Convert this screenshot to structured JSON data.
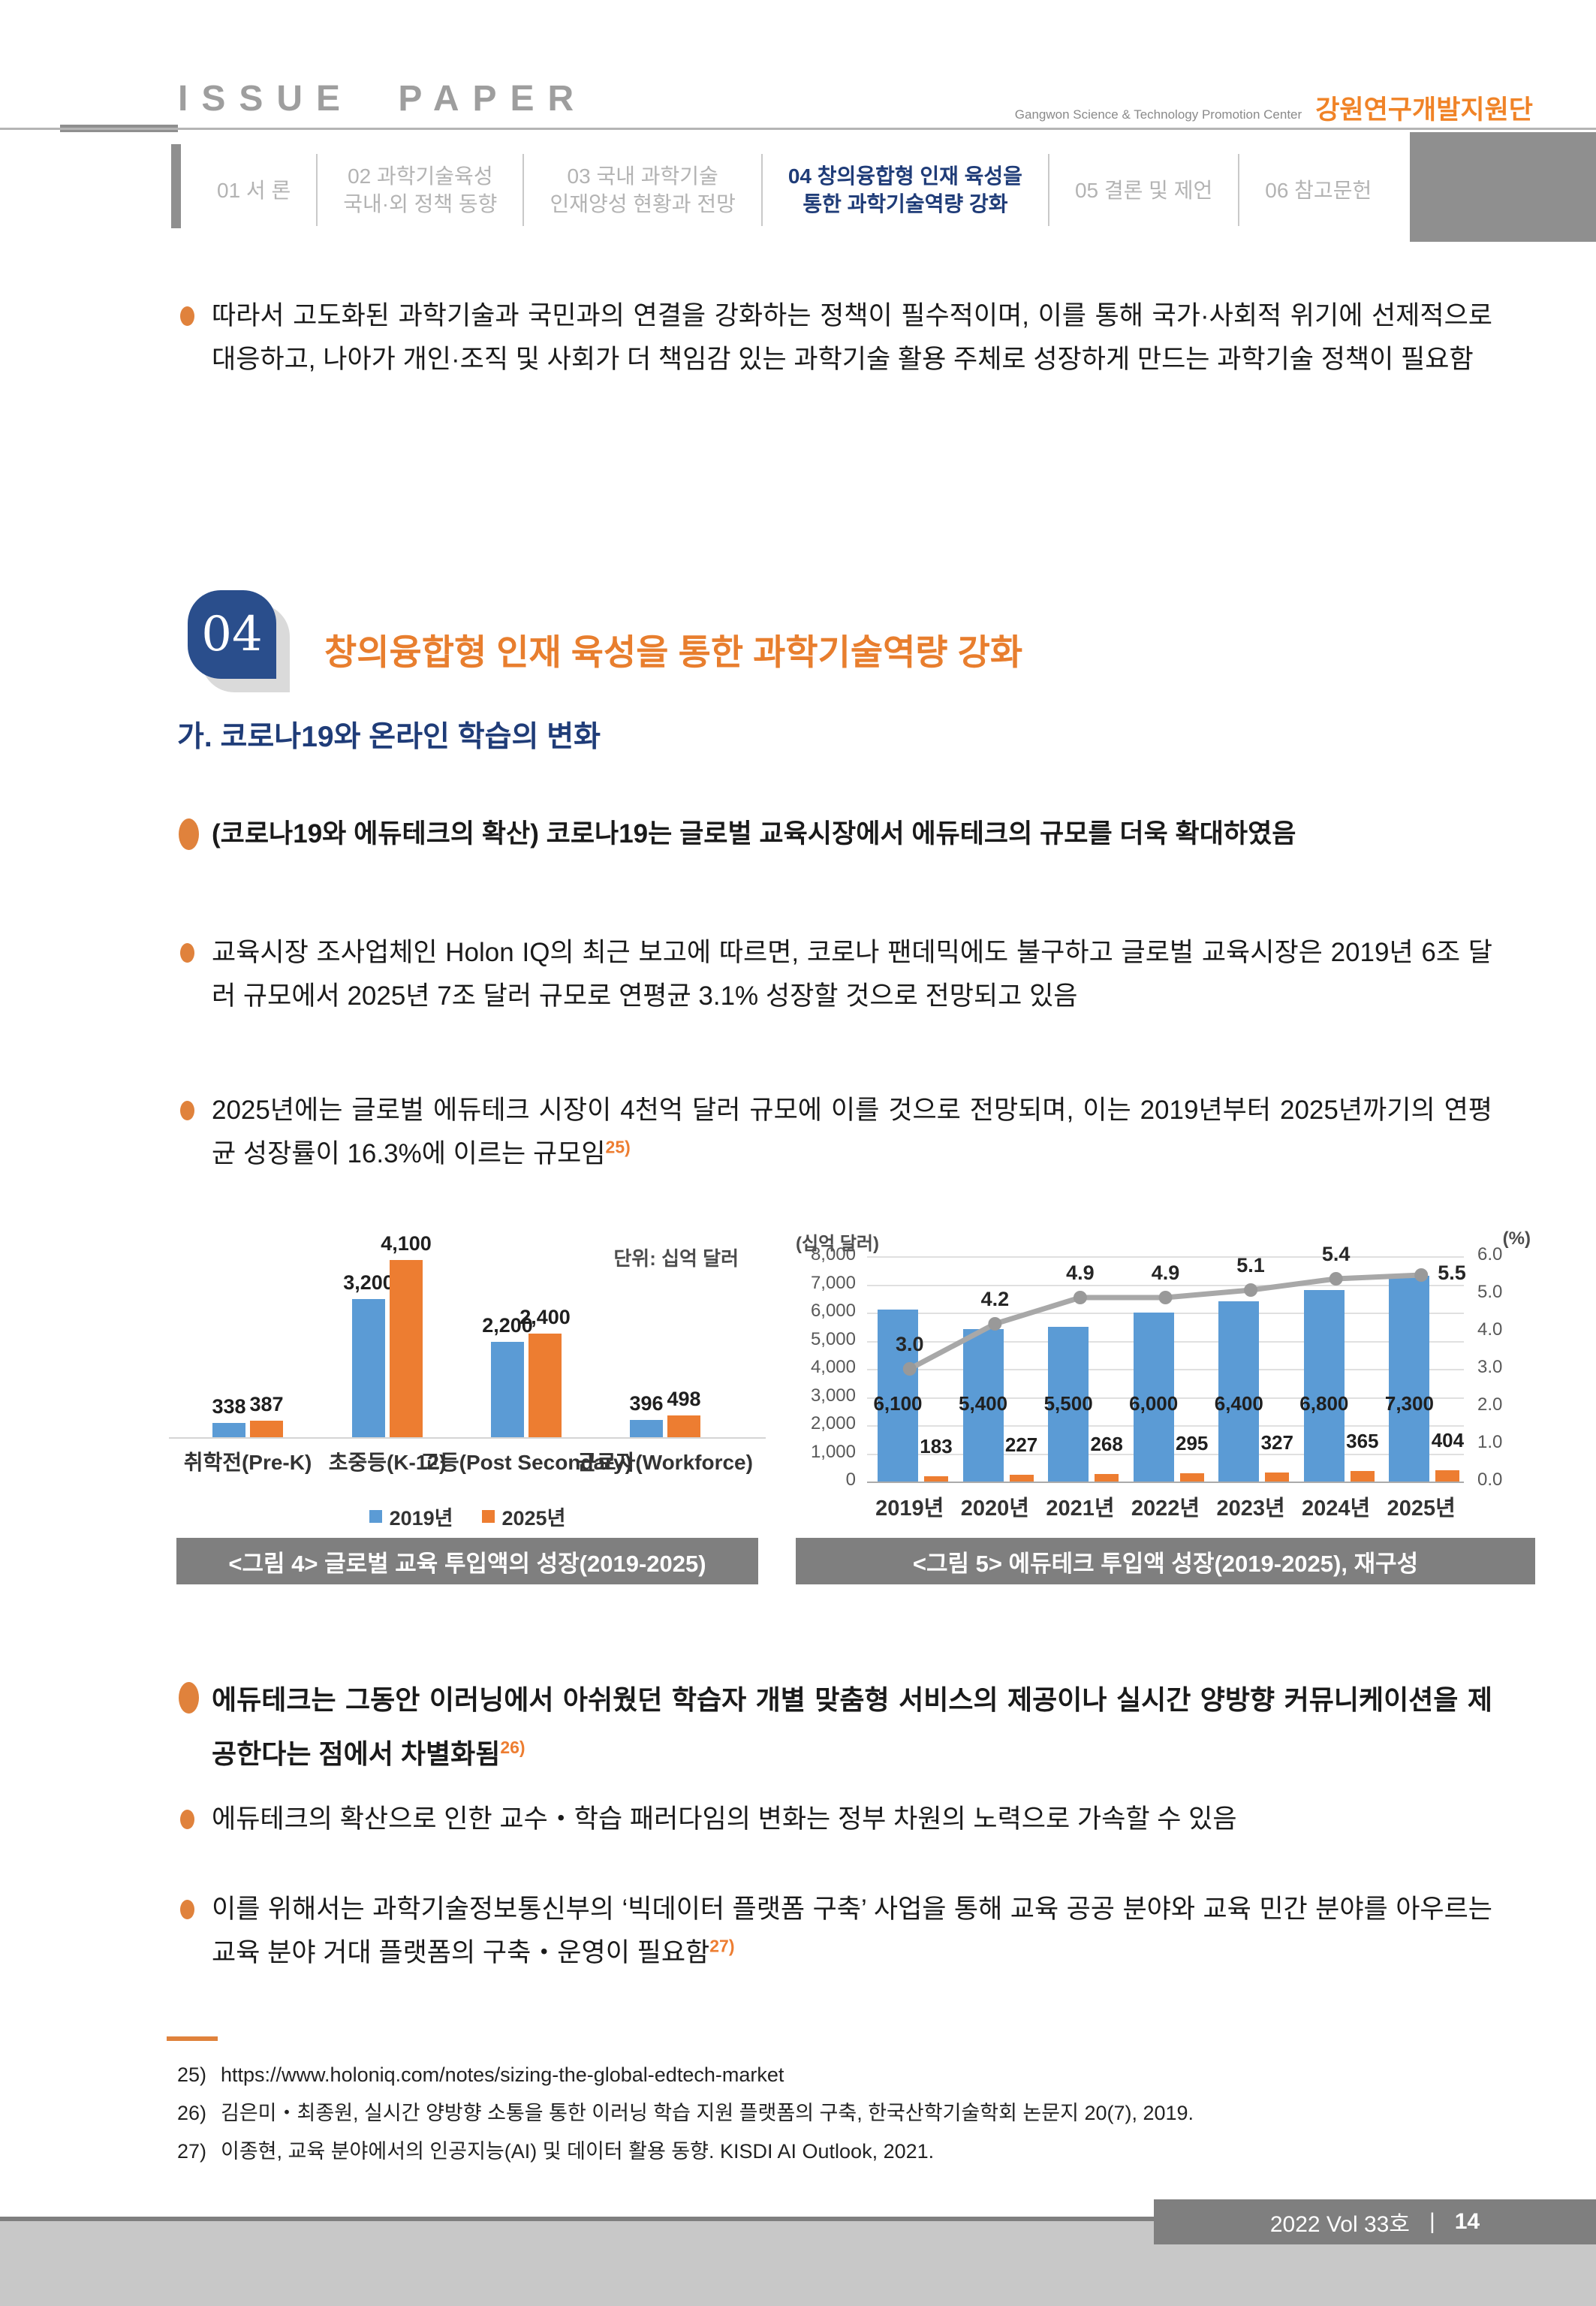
{
  "header": {
    "title": "ISSUE PAPER",
    "org_en": "Gangwon Science & Technology Promotion Center",
    "org_kr": "강원연구개발지원단"
  },
  "nav": [
    {
      "line1": "01 서 론"
    },
    {
      "line1": "02 과학기술육성",
      "line2": "국내·외 정책 동향"
    },
    {
      "line1": "03 국내 과학기술",
      "line2": "인재양성 현황과 전망"
    },
    {
      "line1": "04 창의융합형 인재 육성을",
      "line2": "통한 과학기술역량 강화",
      "active": true
    },
    {
      "line1": "05 결론 및 제언"
    },
    {
      "line1": "06 참고문헌"
    }
  ],
  "content": {
    "intro": "따라서 고도화된 과학기술과 국민과의 연결을 강화하는 정책이 필수적이며, 이를 통해 국가·사회적 위기에 선제적으로 대응하고, 나아가 개인·조직 및 사회가 더 책임감 있는 과학기술 활용 주체로 성장하게 만드는 과학기술 정책이 필요함",
    "section_no": "04",
    "section_title": "창의융합형 인재 육성을 통한 과학기술역량 강화",
    "subsection": "가. 코로나19와 온라인 학습의 변화",
    "b1_head": "(코로나19와 에듀테크의 확산)",
    "b1_rest": " 코로나19는 글로벌 교육시장에서 에듀테크의 규모를 더욱 확대하였음",
    "b2": "교육시장 조사업체인 Holon IQ의 최근 보고에 따르면, 코로나 팬데믹에도 불구하고 글로벌 교육시장은 2019년 6조 달러 규모에서 2025년 7조 달러 규모로 연평균 3.1% 성장할 것으로 전망되고 있음",
    "b3": "2025년에는 글로벌 에듀테크 시장이 4천억 달러 규모에 이를 것으로 전망되며, 이는 2019년부터 2025년까기의 연평균 성장률이 16.3%에 이르는 규모임",
    "b3_sup": "25)",
    "b4": "에듀테크는 그동안 이러닝에서 아쉬웠던 학습자 개별 맞춤형 서비스의 제공이나 실시간 양방향 커뮤니케이션을 제공한다는 점에서 차별화됨",
    "b4_sup": "26)",
    "b5": "에듀테크의 확산으로 인한 교수・학습 패러다임의 변화는 정부 차원의 노력으로 가속할 수 있음",
    "b6": "이를 위해서는 과학기술정보통신부의 ‘빅데이터 플랫폼 구축’ 사업을 통해 교육 공공 분야와 교육 민간 분야를 아우르는 교육 분야 거대 플랫폼의 구축・운영이 필요함",
    "b6_sup": "27)"
  },
  "figures": {
    "fig4_caption": "<그림 4> 글로벌 교육 투입액의 성장(2019-2025)",
    "fig5_caption": "<그림 5> 에듀테크 투입액 성장(2019-2025), 재구성"
  },
  "chart_data": [
    {
      "id": "fig4",
      "type": "bar",
      "unit_label": "단위: 십억 달러",
      "categories": [
        "취학전(Pre-K)",
        "초중등(K-12)",
        "고등(Post Secondary)",
        "근로자(Workforce)"
      ],
      "series": [
        {
          "name": "2019년",
          "color": "#5B9BD5",
          "values": [
            338,
            3200,
            2200,
            396
          ],
          "labels": [
            "338",
            "3,200",
            "2,200",
            "396"
          ]
        },
        {
          "name": "2025년",
          "color": "#ED7D31",
          "values": [
            387,
            4100,
            2400,
            498
          ],
          "labels": [
            "387",
            "4,100",
            "2,400",
            "498"
          ]
        }
      ],
      "ylim": [
        0,
        4300
      ],
      "legend_position": "bottom"
    },
    {
      "id": "fig5",
      "type": "combo",
      "left_axis": {
        "label": "(십억 달러)",
        "max": 8000,
        "ticks": [
          "8,000",
          "7,000",
          "6,000",
          "5,000",
          "4,000",
          "3,000",
          "2,000",
          "1,000",
          "0"
        ]
      },
      "right_axis": {
        "label": "(%)",
        "max": 6.0,
        "ticks": [
          "6.0",
          "5.0",
          "4.0",
          "3.0",
          "2.0",
          "1.0",
          "0.0"
        ]
      },
      "categories": [
        "2019년",
        "2020년",
        "2021년",
        "2022년",
        "2023년",
        "2024년",
        "2025년"
      ],
      "bar_series": [
        {
          "color": "#5B9BD5",
          "values": [
            6100,
            5400,
            5500,
            6000,
            6400,
            6800,
            7300
          ],
          "labels": [
            "6,100",
            "5,400",
            "5,500",
            "6,000",
            "6,400",
            "6,800",
            "7,300"
          ],
          "label_position": "inside"
        },
        {
          "color": "#ED7D31",
          "values": [
            183,
            227,
            268,
            295,
            327,
            365,
            404
          ],
          "labels": [
            "183",
            "227",
            "268",
            "295",
            "327",
            "365",
            "404"
          ],
          "label_position": "above"
        }
      ],
      "line_series": {
        "color": "#A8A8A8",
        "marker_color": "#999999",
        "values": [
          3.0,
          4.2,
          4.9,
          4.9,
          5.1,
          5.4,
          5.5
        ],
        "labels": [
          "3.0",
          "4.2",
          "4.9",
          "4.9",
          "5.1",
          "5.4",
          "5.5"
        ]
      }
    }
  ],
  "footnotes": [
    {
      "num": "25)",
      "text": "https://www.holoniq.com/notes/sizing-the-global-edtech-market"
    },
    {
      "num": "26)",
      "text": "김은미・최종원, 실시간 양방향 소통을 통한 이러닝 학습 지원 플랫폼의 구축, 한국산학기술학회 논문지 20(7), 2019."
    },
    {
      "num": "27)",
      "text": "이종현, 교육 분야에서의 인공지능(AI) 및 데이터 활용 동향. KISDI AI Outlook, 2021."
    }
  ],
  "footer": {
    "vol": "2022 Vol 33호",
    "sep": "|",
    "page": "14"
  }
}
